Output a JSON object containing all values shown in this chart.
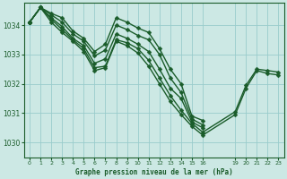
{
  "xlabel": "Graphe pression niveau de la mer (hPa)",
  "bg_color": "#cce8e4",
  "grid_color": "#99cccc",
  "line_color": "#1a5c2a",
  "marker": "D",
  "markersize": 2.5,
  "linewidth": 1.0,
  "yticks": [
    1030,
    1031,
    1032,
    1033,
    1034
  ],
  "ylim": [
    1029.5,
    1034.75
  ],
  "xlim": [
    -0.5,
    23.5
  ],
  "xtick_positions": [
    0,
    1,
    2,
    3,
    4,
    5,
    6,
    7,
    8,
    9,
    10,
    11,
    12,
    13,
    14,
    15,
    16,
    19,
    20,
    21,
    22,
    23
  ],
  "xtick_labels": [
    "0",
    "1",
    "2",
    "3",
    "4",
    "5",
    "6",
    "7",
    "8",
    "9",
    "10",
    "11",
    "12",
    "13",
    "14",
    "15",
    "16",
    "19",
    "20",
    "21",
    "22",
    "23"
  ],
  "series": [
    {
      "x": [
        0,
        1,
        2,
        3,
        4,
        5,
        6,
        7,
        8,
        9,
        10,
        11,
        12,
        13,
        14,
        15,
        16
      ],
      "y": [
        1034.1,
        1034.6,
        1034.4,
        1034.25,
        1033.8,
        1033.55,
        1033.1,
        1033.35,
        1034.25,
        1034.1,
        1033.9,
        1033.75,
        1033.2,
        1032.5,
        1032.0,
        1030.9,
        1030.75
      ]
    },
    {
      "x": [
        0,
        1,
        2,
        3,
        4,
        5,
        6,
        7,
        8,
        9,
        10,
        11,
        12,
        13,
        14,
        15,
        16
      ],
      "y": [
        1034.1,
        1034.6,
        1034.35,
        1034.1,
        1033.7,
        1033.45,
        1032.95,
        1033.15,
        1034.0,
        1033.85,
        1033.65,
        1033.5,
        1033.0,
        1032.2,
        1031.7,
        1030.8,
        1030.6
      ]
    },
    {
      "x": [
        0,
        1,
        2,
        3,
        4,
        5,
        6,
        7,
        8,
        9,
        10,
        11,
        12,
        13,
        14,
        15,
        16
      ],
      "y": [
        1034.1,
        1034.6,
        1034.25,
        1033.95,
        1033.55,
        1033.3,
        1032.7,
        1032.85,
        1033.7,
        1033.55,
        1033.35,
        1033.1,
        1032.5,
        1031.85,
        1031.5,
        1030.7,
        1030.5
      ]
    },
    {
      "x": [
        0,
        1,
        2,
        3,
        4,
        5,
        6,
        7,
        8,
        9,
        10,
        11,
        12,
        13,
        14,
        15,
        16,
        19,
        20,
        21,
        22,
        23
      ],
      "y": [
        1034.1,
        1034.6,
        1034.2,
        1033.85,
        1033.5,
        1033.2,
        1032.55,
        1032.6,
        1033.5,
        1033.4,
        1033.2,
        1032.8,
        1032.2,
        1031.6,
        1031.1,
        1030.65,
        1030.35,
        1031.05,
        1031.95,
        1032.5,
        1032.45,
        1032.4
      ]
    },
    {
      "x": [
        0,
        1,
        2,
        3,
        4,
        5,
        6,
        7,
        8,
        9,
        10,
        11,
        12,
        13,
        14,
        15,
        16,
        19,
        20,
        21,
        22,
        23
      ],
      "y": [
        1034.1,
        1034.6,
        1034.1,
        1033.75,
        1033.45,
        1033.1,
        1032.45,
        1032.55,
        1033.45,
        1033.3,
        1033.05,
        1032.6,
        1032.0,
        1031.4,
        1030.95,
        1030.55,
        1030.25,
        1030.95,
        1031.85,
        1032.45,
        1032.35,
        1032.3
      ]
    }
  ]
}
